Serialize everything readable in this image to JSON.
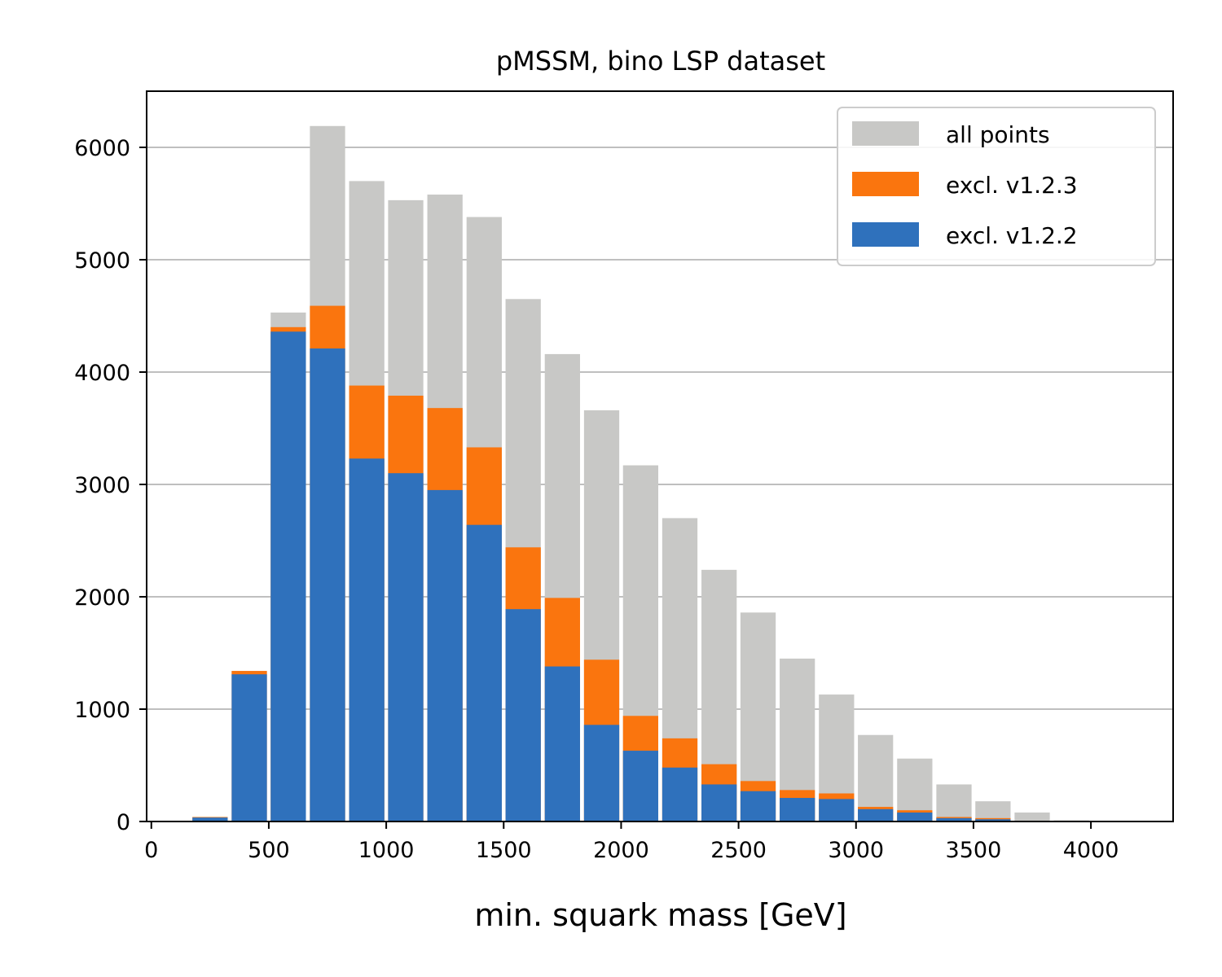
{
  "chart_data": {
    "type": "bar",
    "stacking": "overlay",
    "title": "pMSSM, bino LSP dataset",
    "xlabel": "min. squark mass [GeV]",
    "ylabel": "",
    "xlim": [
      -20,
      4350
    ],
    "ylim": [
      0,
      6500
    ],
    "grid": "y",
    "legend_position": "top-right",
    "bin_width": 166.7,
    "bin_centers": [
      250,
      417,
      583,
      750,
      917,
      1083,
      1250,
      1417,
      1583,
      1750,
      1917,
      2083,
      2250,
      2417,
      2583,
      2750,
      2917,
      3083,
      3250,
      3417,
      3583,
      3750,
      3917,
      4083
    ],
    "xticks": [
      0,
      500,
      1000,
      1500,
      2000,
      2500,
      3000,
      3500,
      4000
    ],
    "yticks": [
      0,
      1000,
      2000,
      3000,
      4000,
      5000,
      6000
    ],
    "xtick_labels": [
      "0",
      "500",
      "1000",
      "1500",
      "2000",
      "2500",
      "3000",
      "3500",
      "4000"
    ],
    "ytick_labels": [
      "0",
      "1000",
      "2000",
      "3000",
      "4000",
      "5000",
      "6000"
    ],
    "series": [
      {
        "name": "all points",
        "color": "#c8c8c6",
        "values": [
          40,
          1340,
          4530,
          6190,
          5700,
          5530,
          5580,
          5380,
          4650,
          4160,
          3660,
          3170,
          2700,
          2240,
          1860,
          1450,
          1130,
          770,
          560,
          330,
          180,
          80,
          10,
          5
        ]
      },
      {
        "name": "excl. v1.2.3",
        "color": "#fa750e",
        "values": [
          40,
          1340,
          4400,
          4590,
          3880,
          3790,
          3680,
          3330,
          2440,
          1990,
          1440,
          940,
          740,
          510,
          360,
          280,
          250,
          130,
          100,
          40,
          30,
          5,
          0,
          0
        ]
      },
      {
        "name": "excl. v1.2.2",
        "color": "#2f71bc",
        "values": [
          35,
          1310,
          4360,
          4210,
          3230,
          3100,
          2950,
          2640,
          1890,
          1380,
          860,
          630,
          480,
          330,
          270,
          210,
          200,
          110,
          80,
          30,
          20,
          5,
          0,
          0
        ]
      }
    ],
    "legend": [
      "all points",
      "excl. v1.2.3",
      "excl. v1.2.2"
    ]
  }
}
